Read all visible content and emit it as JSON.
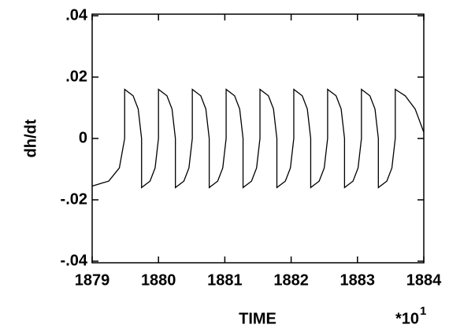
{
  "chart_data": {
    "type": "line",
    "xlabel": "TIME",
    "ylabel": "dh/dt",
    "x_multiplier": "*10",
    "x_multiplier_exponent": "1",
    "x": [
      1879,
      1879.25,
      1879.41,
      1879.49,
      1879.49,
      1879.6175,
      1879.694,
      1879.745,
      1879.745,
      1879.8725,
      1879.949,
      1880,
      1880,
      1880.1275,
      1880.204,
      1880.255,
      1880.255,
      1880.3825,
      1880.459,
      1880.51,
      1880.51,
      1880.6375,
      1880.714,
      1880.765,
      1880.765,
      1880.8925,
      1880.969,
      1881.02,
      1881.02,
      1881.1475,
      1881.224,
      1881.275,
      1881.275,
      1881.4025,
      1881.479,
      1881.53,
      1881.53,
      1881.6575,
      1881.734,
      1881.785,
      1881.785,
      1881.9125,
      1881.989,
      1882.04,
      1882.04,
      1882.1675,
      1882.244,
      1882.295,
      1882.295,
      1882.4225,
      1882.499,
      1882.55,
      1882.55,
      1882.6775,
      1882.754,
      1882.805,
      1882.805,
      1882.9325,
      1883.009,
      1883.06,
      1883.06,
      1883.1875,
      1883.264,
      1883.315,
      1883.315,
      1883.4425,
      1883.519,
      1883.57,
      1883.57,
      1883.72,
      1883.87,
      1884
    ],
    "series": [
      {
        "color": "#000000",
        "values": [
          -0.0155,
          -0.0139,
          -0.0096,
          0,
          0.016,
          0.0139,
          0.0096,
          0,
          -0.016,
          -0.0139,
          -0.0096,
          0,
          0.016,
          0.0139,
          0.0096,
          0,
          -0.016,
          -0.0139,
          -0.0096,
          0,
          0.016,
          0.0139,
          0.0096,
          0,
          -0.016,
          -0.0139,
          -0.0096,
          0,
          0.016,
          0.0139,
          0.0096,
          0,
          -0.016,
          -0.0139,
          -0.0096,
          0,
          0.016,
          0.0139,
          0.0096,
          0,
          -0.016,
          -0.0139,
          -0.0096,
          0,
          0.016,
          0.0139,
          0.0096,
          0,
          -0.016,
          -0.0139,
          -0.0096,
          0,
          0.016,
          0.0139,
          0.0096,
          0,
          -0.016,
          -0.0139,
          -0.0096,
          0,
          0.016,
          0.0139,
          0.0096,
          0,
          -0.016,
          -0.0139,
          -0.0096,
          0,
          0.016,
          0.0139,
          0.0096,
          0.002
        ]
      }
    ],
    "xlim": [
      1879,
      1884
    ],
    "xticks": [
      1879,
      1880,
      1881,
      1882,
      1883,
      1884
    ],
    "ylim": [
      -0.04,
      0.04
    ],
    "yticks": [
      {
        "value": -0.04,
        "label": "-.04"
      },
      {
        "value": -0.02,
        "label": "-.02"
      },
      0,
      {
        "value": 0.02,
        "label": ".02"
      },
      {
        "value": 0.04,
        "label": ".04"
      }
    ],
    "grid": false
  }
}
